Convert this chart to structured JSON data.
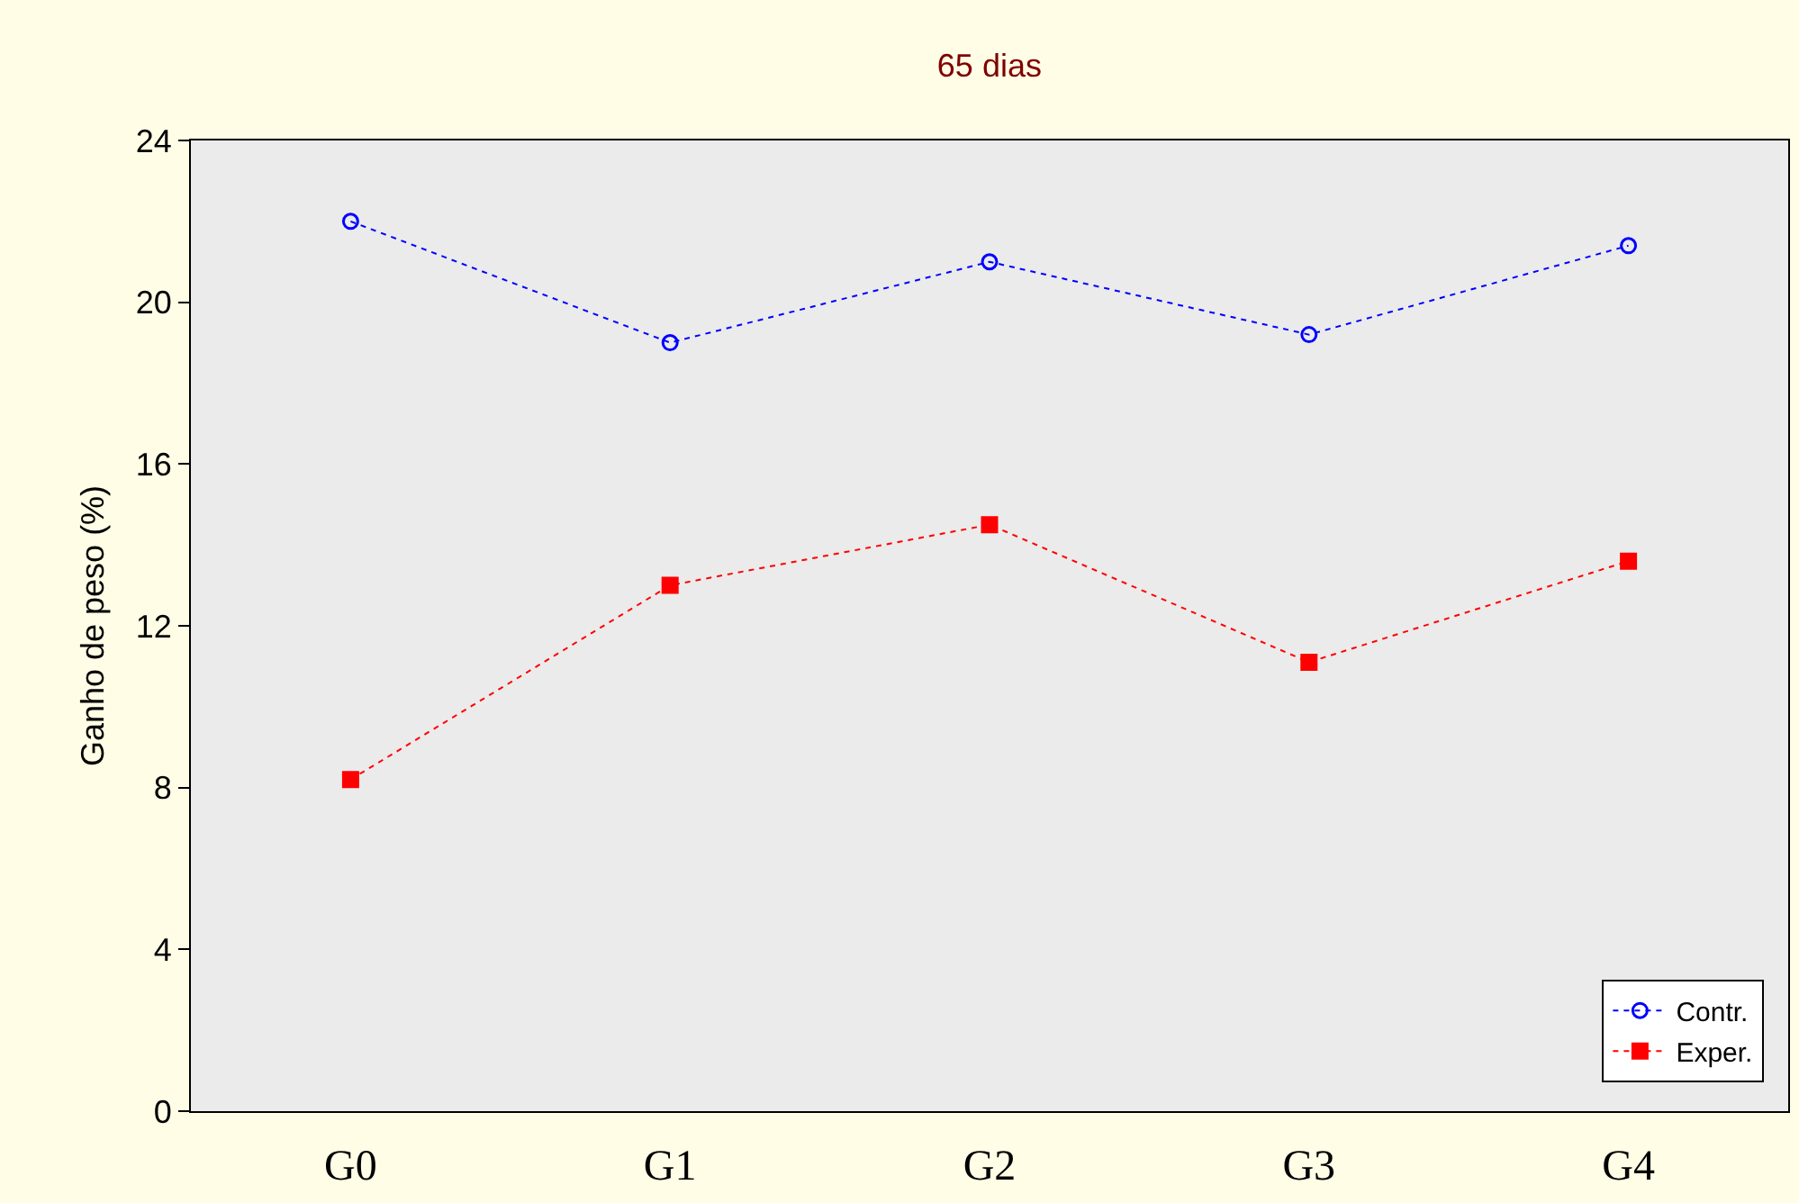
{
  "chart_data": {
    "type": "line",
    "title": "65 dias",
    "ylabel": "Ganho de peso (%)",
    "categories": [
      "G0",
      "G1",
      "G2",
      "G3",
      "G4"
    ],
    "series": [
      {
        "name": "Contr.",
        "color": "#0000ff",
        "marker": "circle",
        "values": [
          22,
          19,
          21,
          19.2,
          21.4
        ]
      },
      {
        "name": "Exper.",
        "color": "#ff0000",
        "marker": "square",
        "values": [
          8.2,
          13,
          14.5,
          11.1,
          13.6
        ]
      }
    ],
    "ylim": [
      0,
      24
    ],
    "yticks": [
      0,
      4,
      8,
      12,
      16,
      20,
      24
    ],
    "grid": false,
    "legend": "bottom right",
    "line_style": "dotted"
  }
}
